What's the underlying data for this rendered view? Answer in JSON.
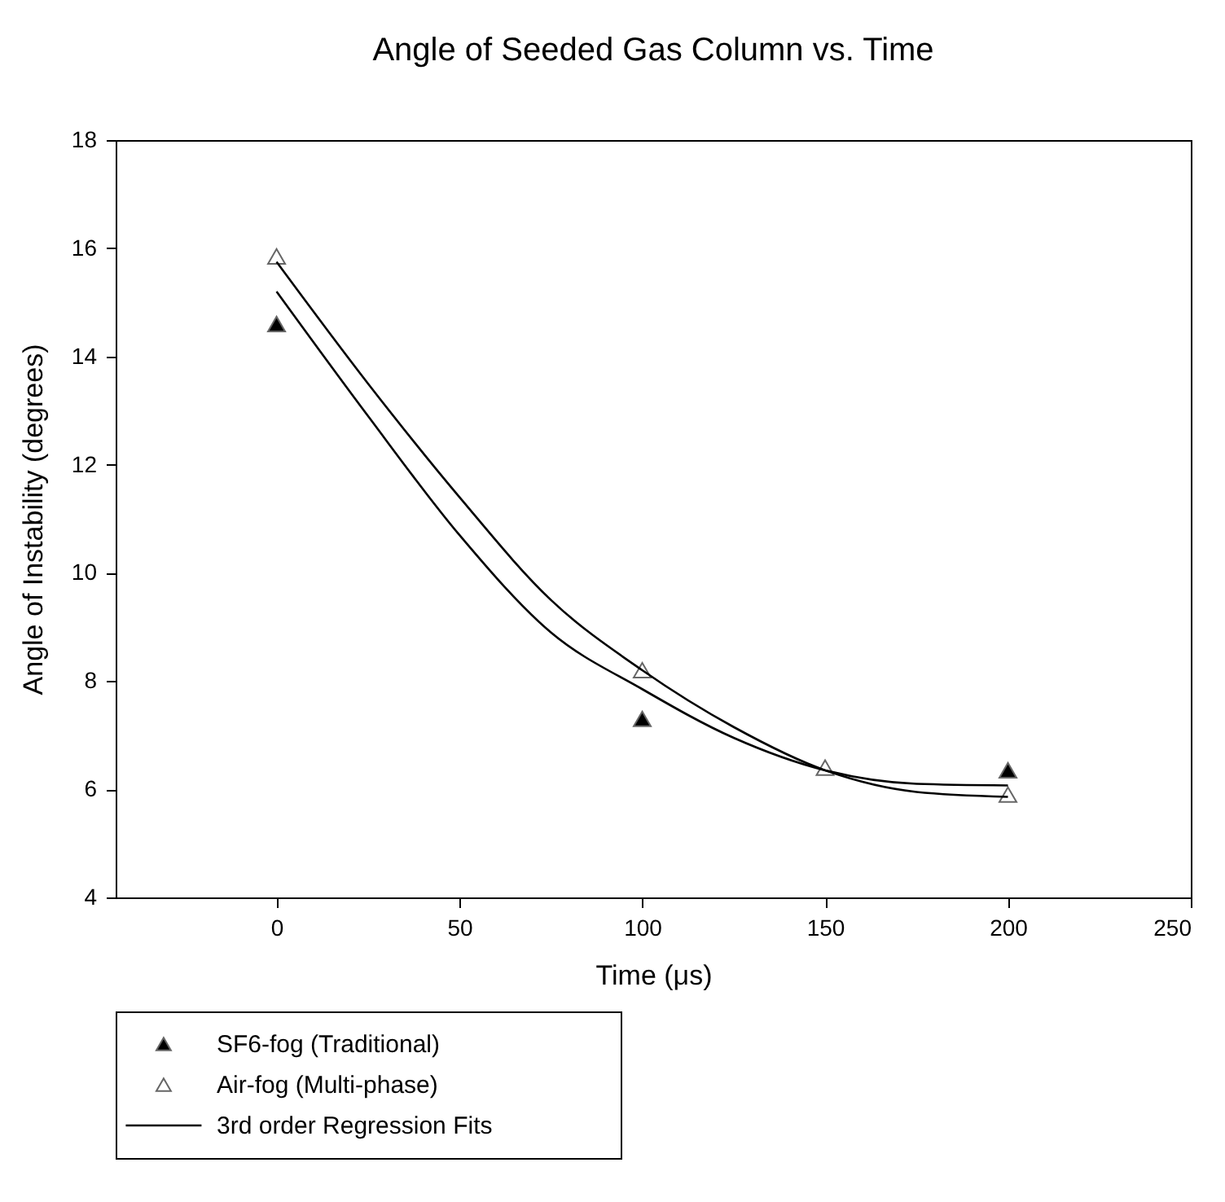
{
  "chart_data": {
    "type": "scatter",
    "title": "Angle of Seeded Gas Column vs. Time",
    "xlabel": "Time (μs)",
    "ylabel": "Angle of Instability (degrees)",
    "xlim": [
      -44,
      250
    ],
    "xticks": [
      0,
      50,
      100,
      150,
      200,
      250
    ],
    "ylim": [
      4,
      18
    ],
    "yticks": [
      4,
      6,
      8,
      10,
      12,
      14,
      16,
      18
    ],
    "legend": "bottom left",
    "series": [
      {
        "name": "SF6-fog (Traditional)",
        "marker": "triangle",
        "color": "#000000",
        "x": [
          0,
          100,
          200
        ],
        "values": [
          14.6,
          7.3,
          6.35
        ]
      },
      {
        "name": "Air-fog (Multi-phase)",
        "marker": "triangle",
        "color": "#ffffff",
        "x": [
          0,
          100,
          150,
          200
        ],
        "values": [
          15.85,
          8.2,
          6.4,
          5.9
        ]
      },
      {
        "name": "3rd order Regression Fits",
        "type": "line",
        "marker": "none",
        "color": "#000000",
        "x": [
          0,
          25,
          50,
          75,
          100,
          125,
          150,
          175,
          200
        ],
        "values": [
          15.2,
          12.9,
          10.7,
          8.9,
          7.85,
          6.95,
          6.35,
          6.1,
          6.07
        ]
      },
      {
        "type": "line",
        "marker": "none",
        "color": "#000000",
        "x": [
          0,
          25,
          50,
          75,
          100,
          125,
          150,
          175,
          200
        ],
        "values": [
          15.75,
          13.5,
          11.4,
          9.5,
          8.2,
          7.15,
          6.35,
          5.95,
          5.86
        ]
      }
    ]
  }
}
